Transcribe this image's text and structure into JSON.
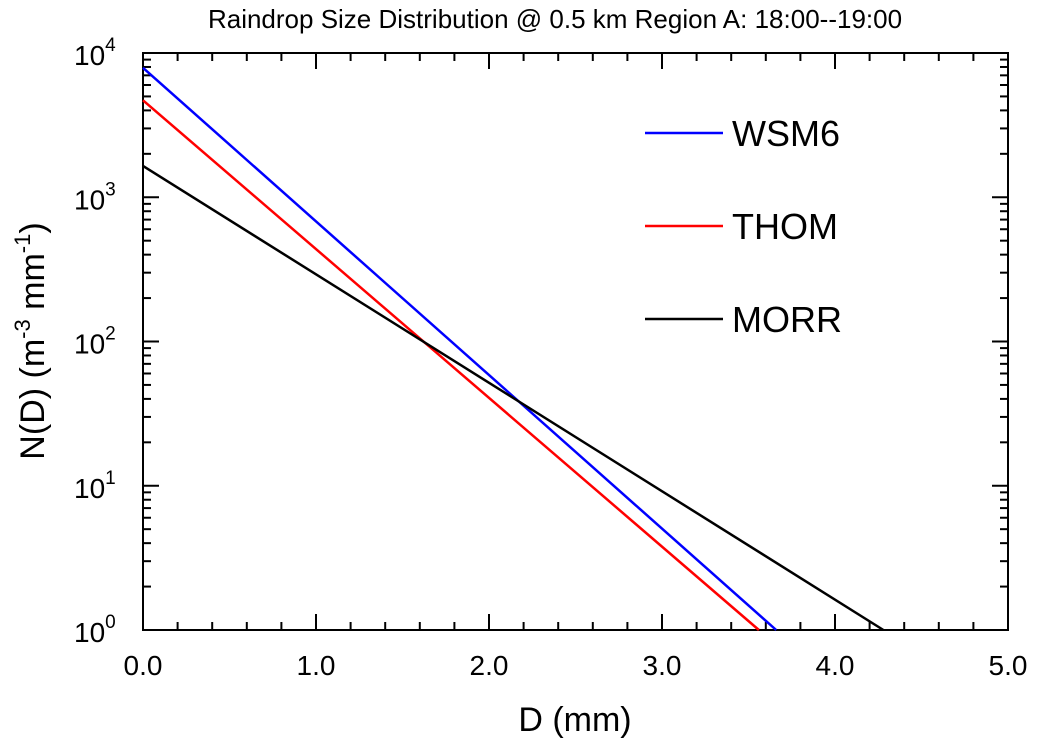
{
  "chart_data": {
    "type": "line",
    "title": "Raindrop Size Distribution @ 0.5 km Region A: 18:00--19:00",
    "xlabel": "D (mm)",
    "ylabel": {
      "prefix": "N(D) (m",
      "sup1": "-3",
      "middle": " mm",
      "sup2": "-1",
      "suffix": ")"
    },
    "xlim": [
      0,
      5
    ],
    "ylim": [
      1,
      10000
    ],
    "yscale": "log",
    "grid": false,
    "legend_position": "top-right",
    "x_ticks": [
      {
        "value": 0,
        "label": "0.0"
      },
      {
        "value": 1,
        "label": "1.0"
      },
      {
        "value": 2,
        "label": "2.0"
      },
      {
        "value": 3,
        "label": "3.0"
      },
      {
        "value": 4,
        "label": "4.0"
      },
      {
        "value": 5,
        "label": "5.0"
      }
    ],
    "y_ticks": [
      {
        "value": 1,
        "base": "10",
        "exp": "0"
      },
      {
        "value": 10,
        "base": "10",
        "exp": "1"
      },
      {
        "value": 100,
        "base": "10",
        "exp": "2"
      },
      {
        "value": 1000,
        "base": "10",
        "exp": "3"
      },
      {
        "value": 10000,
        "base": "10",
        "exp": "4"
      }
    ],
    "series": [
      {
        "name": "WSM6",
        "color": "#0000ff",
        "x": [
          0,
          3.66
        ],
        "y": [
          7900,
          1
        ]
      },
      {
        "name": "THOM",
        "color": "#ff0000",
        "x": [
          0,
          3.56
        ],
        "y": [
          4700,
          1
        ]
      },
      {
        "name": "MORR",
        "color": "#000000",
        "x": [
          0,
          4.28
        ],
        "y": [
          1650,
          1
        ]
      }
    ]
  }
}
